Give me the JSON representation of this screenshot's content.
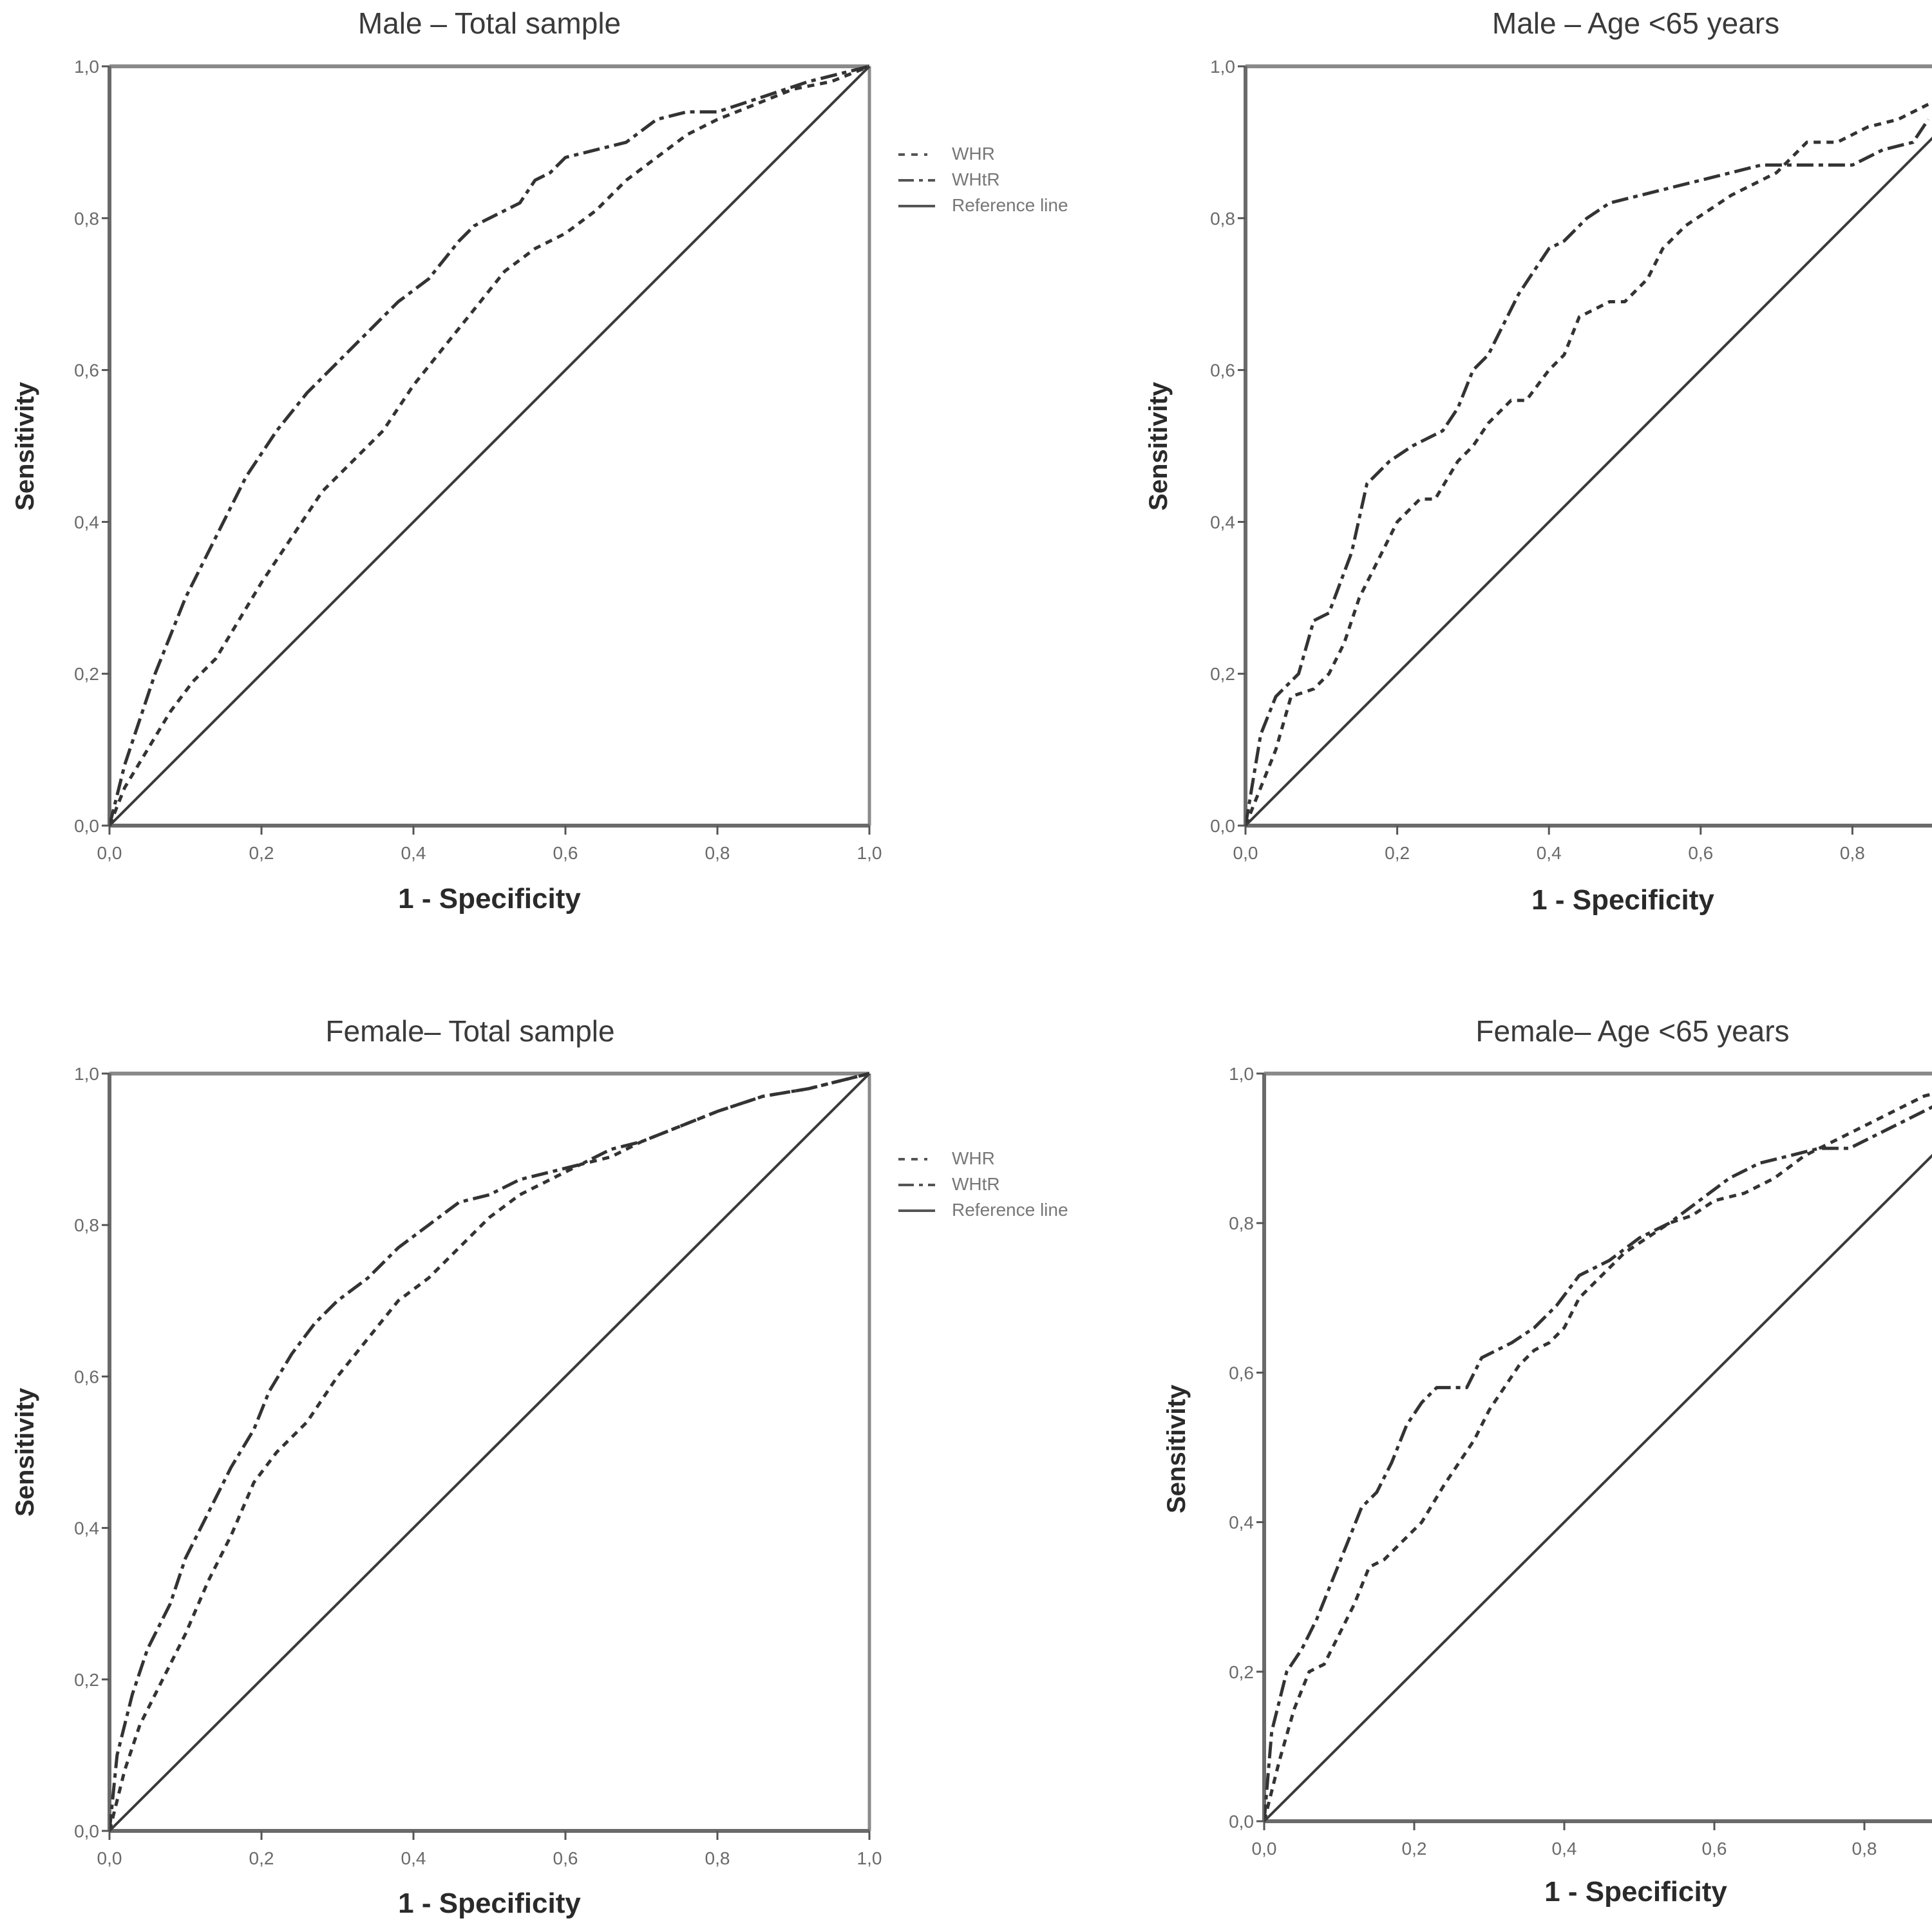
{
  "chart_data": [
    {
      "type": "line",
      "title": "Male – Total sample",
      "xlabel": "1 - Specificity",
      "ylabel": "Sensitivity",
      "xlim": [
        0,
        1
      ],
      "ylim": [
        0,
        1
      ],
      "xticks": [
        "0,0",
        "0,2",
        "0,4",
        "0,6",
        "0,8",
        "1,0"
      ],
      "yticks": [
        "0,0",
        "0,2",
        "0,4",
        "0,6",
        "0,8",
        "1,0"
      ],
      "grid": false,
      "legend": {
        "placement": "right",
        "entries": [
          "WHR",
          "WHtR",
          "Reference line"
        ]
      },
      "series": [
        {
          "name": "WHR",
          "style": "short-dash",
          "x": [
            0,
            0.02,
            0.05,
            0.08,
            0.11,
            0.14,
            0.17,
            0.2,
            0.24,
            0.28,
            0.32,
            0.36,
            0.4,
            0.44,
            0.48,
            0.52,
            0.56,
            0.6,
            0.64,
            0.68,
            0.72,
            0.76,
            0.8,
            0.85,
            0.9,
            0.95,
            1.0
          ],
          "y": [
            0,
            0.05,
            0.1,
            0.15,
            0.19,
            0.22,
            0.27,
            0.32,
            0.38,
            0.44,
            0.48,
            0.52,
            0.58,
            0.63,
            0.68,
            0.73,
            0.76,
            0.78,
            0.81,
            0.85,
            0.88,
            0.91,
            0.93,
            0.95,
            0.97,
            0.98,
            1.0
          ]
        },
        {
          "name": "WHtR",
          "style": "dash-dot",
          "x": [
            0,
            0.02,
            0.04,
            0.06,
            0.08,
            0.1,
            0.12,
            0.15,
            0.18,
            0.22,
            0.26,
            0.3,
            0.34,
            0.38,
            0.42,
            0.46,
            0.48,
            0.52,
            0.54,
            0.56,
            0.58,
            0.6,
            0.64,
            0.68,
            0.72,
            0.76,
            0.8,
            0.86,
            0.92,
            1.0
          ],
          "y": [
            0,
            0.08,
            0.14,
            0.2,
            0.25,
            0.3,
            0.34,
            0.4,
            0.46,
            0.52,
            0.57,
            0.61,
            0.65,
            0.69,
            0.72,
            0.77,
            0.79,
            0.81,
            0.82,
            0.85,
            0.86,
            0.88,
            0.89,
            0.9,
            0.93,
            0.94,
            0.94,
            0.96,
            0.98,
            1.0
          ]
        },
        {
          "name": "Reference line",
          "style": "solid",
          "x": [
            0,
            1
          ],
          "y": [
            0,
            1
          ]
        }
      ]
    },
    {
      "type": "line",
      "title": "Male – Age <65 years",
      "xlabel": "1 - Specificity",
      "ylabel": "Sensitivity",
      "xlim": [
        0,
        1
      ],
      "ylim": [
        0,
        1
      ],
      "xticks": [
        "0,0",
        "0,2",
        "0,4",
        "0,6",
        "0,8"
      ],
      "yticks": [
        "0,0",
        "0,2",
        "0,4",
        "0,6",
        "0,8",
        "1,0"
      ],
      "grid": false,
      "series": [
        {
          "name": "WHR",
          "style": "short-dash",
          "x": [
            0,
            0.02,
            0.04,
            0.06,
            0.09,
            0.11,
            0.13,
            0.15,
            0.17,
            0.2,
            0.23,
            0.25,
            0.28,
            0.3,
            0.32,
            0.35,
            0.37,
            0.4,
            0.42,
            0.44,
            0.48,
            0.5,
            0.53,
            0.55,
            0.58,
            0.61,
            0.64,
            0.68,
            0.7,
            0.74,
            0.78,
            0.82,
            0.86,
            0.9
          ],
          "y": [
            0,
            0.05,
            0.1,
            0.17,
            0.18,
            0.2,
            0.24,
            0.3,
            0.34,
            0.4,
            0.43,
            0.43,
            0.48,
            0.5,
            0.53,
            0.56,
            0.56,
            0.6,
            0.62,
            0.67,
            0.69,
            0.69,
            0.72,
            0.76,
            0.79,
            0.81,
            0.83,
            0.85,
            0.86,
            0.9,
            0.9,
            0.92,
            0.93,
            0.95
          ]
        },
        {
          "name": "WHtR",
          "style": "dash-dot",
          "x": [
            0,
            0.01,
            0.02,
            0.04,
            0.07,
            0.09,
            0.11,
            0.14,
            0.16,
            0.19,
            0.22,
            0.24,
            0.26,
            0.28,
            0.3,
            0.32,
            0.34,
            0.36,
            0.38,
            0.4,
            0.42,
            0.45,
            0.48,
            0.52,
            0.56,
            0.6,
            0.64,
            0.68,
            0.72,
            0.76,
            0.8,
            0.84,
            0.88,
            0.9
          ],
          "y": [
            0,
            0.06,
            0.12,
            0.17,
            0.2,
            0.27,
            0.28,
            0.36,
            0.45,
            0.48,
            0.5,
            0.51,
            0.52,
            0.55,
            0.6,
            0.62,
            0.66,
            0.7,
            0.73,
            0.76,
            0.77,
            0.8,
            0.82,
            0.83,
            0.84,
            0.85,
            0.86,
            0.87,
            0.87,
            0.87,
            0.87,
            0.89,
            0.9,
            0.93
          ]
        },
        {
          "name": "Reference line",
          "style": "solid",
          "x": [
            0,
            1
          ],
          "y": [
            0,
            1
          ]
        }
      ]
    },
    {
      "type": "line",
      "title": "Female– Total sample",
      "xlabel": "1 - Specificity",
      "ylabel": "Sensitivity",
      "xlim": [
        0,
        1
      ],
      "ylim": [
        0,
        1
      ],
      "xticks": [
        "0,0",
        "0,2",
        "0,4",
        "0,6",
        "0,8",
        "1,0"
      ],
      "yticks": [
        "0,0",
        "0,2",
        "0,4",
        "0,6",
        "0,8",
        "1,0"
      ],
      "grid": false,
      "legend": {
        "placement": "right",
        "entries": [
          "WHR",
          "WHtR",
          "Reference line"
        ]
      },
      "series": [
        {
          "name": "WHR",
          "style": "short-dash",
          "x": [
            0,
            0.02,
            0.04,
            0.07,
            0.1,
            0.13,
            0.16,
            0.19,
            0.22,
            0.26,
            0.3,
            0.34,
            0.38,
            0.42,
            0.46,
            0.5,
            0.54,
            0.58,
            0.62,
            0.66,
            0.7,
            0.75,
            0.8,
            0.86,
            0.92,
            1.0
          ],
          "y": [
            0,
            0.08,
            0.14,
            0.2,
            0.26,
            0.33,
            0.39,
            0.46,
            0.5,
            0.54,
            0.6,
            0.65,
            0.7,
            0.73,
            0.77,
            0.81,
            0.84,
            0.86,
            0.88,
            0.89,
            0.91,
            0.93,
            0.95,
            0.97,
            0.98,
            1.0
          ]
        },
        {
          "name": "WHtR",
          "style": "dash-dot",
          "x": [
            0,
            0.01,
            0.03,
            0.05,
            0.08,
            0.1,
            0.13,
            0.16,
            0.19,
            0.21,
            0.24,
            0.27,
            0.3,
            0.34,
            0.38,
            0.42,
            0.46,
            0.5,
            0.54,
            0.58,
            0.62,
            0.66,
            0.7,
            0.75,
            0.8,
            0.86,
            0.92,
            1.0
          ],
          "y": [
            0,
            0.1,
            0.18,
            0.24,
            0.3,
            0.36,
            0.42,
            0.48,
            0.53,
            0.58,
            0.63,
            0.67,
            0.7,
            0.73,
            0.77,
            0.8,
            0.83,
            0.84,
            0.86,
            0.87,
            0.88,
            0.9,
            0.91,
            0.93,
            0.95,
            0.97,
            0.98,
            1.0
          ]
        },
        {
          "name": "Reference line",
          "style": "solid",
          "x": [
            0,
            1
          ],
          "y": [
            0,
            1
          ]
        }
      ]
    },
    {
      "type": "line",
      "title": "Female– Age <65 years",
      "xlabel": "1 - Specificity",
      "ylabel": "Sensitivity",
      "xlim": [
        0,
        1
      ],
      "ylim": [
        0,
        1
      ],
      "xticks": [
        "0,0",
        "0,2",
        "0,4",
        "0,6",
        "0,8"
      ],
      "yticks": [
        "0,0",
        "0,2",
        "0,4",
        "0,6",
        "0,8",
        "1,0"
      ],
      "grid": false,
      "series": [
        {
          "name": "WHR",
          "style": "short-dash",
          "x": [
            0,
            0.02,
            0.04,
            0.06,
            0.08,
            0.1,
            0.12,
            0.14,
            0.16,
            0.18,
            0.21,
            0.24,
            0.26,
            0.28,
            0.3,
            0.32,
            0.34,
            0.36,
            0.38,
            0.4,
            0.42,
            0.45,
            0.48,
            0.51,
            0.54,
            0.57,
            0.6,
            0.64,
            0.68,
            0.72,
            0.76,
            0.8,
            0.84,
            0.88,
            0.92
          ],
          "y": [
            0,
            0.08,
            0.15,
            0.2,
            0.21,
            0.25,
            0.29,
            0.34,
            0.35,
            0.37,
            0.4,
            0.45,
            0.48,
            0.51,
            0.55,
            0.58,
            0.61,
            0.63,
            0.64,
            0.66,
            0.7,
            0.73,
            0.76,
            0.78,
            0.8,
            0.81,
            0.83,
            0.84,
            0.86,
            0.89,
            0.91,
            0.93,
            0.95,
            0.97,
            0.98
          ]
        },
        {
          "name": "WHtR",
          "style": "dash-dot",
          "x": [
            0,
            0.01,
            0.03,
            0.05,
            0.07,
            0.09,
            0.11,
            0.13,
            0.15,
            0.17,
            0.19,
            0.21,
            0.23,
            0.25,
            0.27,
            0.29,
            0.31,
            0.33,
            0.36,
            0.39,
            0.42,
            0.46,
            0.5,
            0.54,
            0.58,
            0.62,
            0.66,
            0.7,
            0.74,
            0.78,
            0.82,
            0.86,
            0.9,
            0.94
          ],
          "y": [
            0,
            0.12,
            0.2,
            0.23,
            0.27,
            0.32,
            0.37,
            0.42,
            0.44,
            0.48,
            0.53,
            0.56,
            0.58,
            0.58,
            0.58,
            0.62,
            0.63,
            0.64,
            0.66,
            0.69,
            0.73,
            0.75,
            0.78,
            0.8,
            0.83,
            0.86,
            0.88,
            0.89,
            0.9,
            0.9,
            0.92,
            0.94,
            0.96,
            0.97
          ]
        },
        {
          "name": "Reference line",
          "style": "solid",
          "x": [
            0,
            1
          ],
          "y": [
            0,
            1
          ]
        }
      ]
    }
  ]
}
